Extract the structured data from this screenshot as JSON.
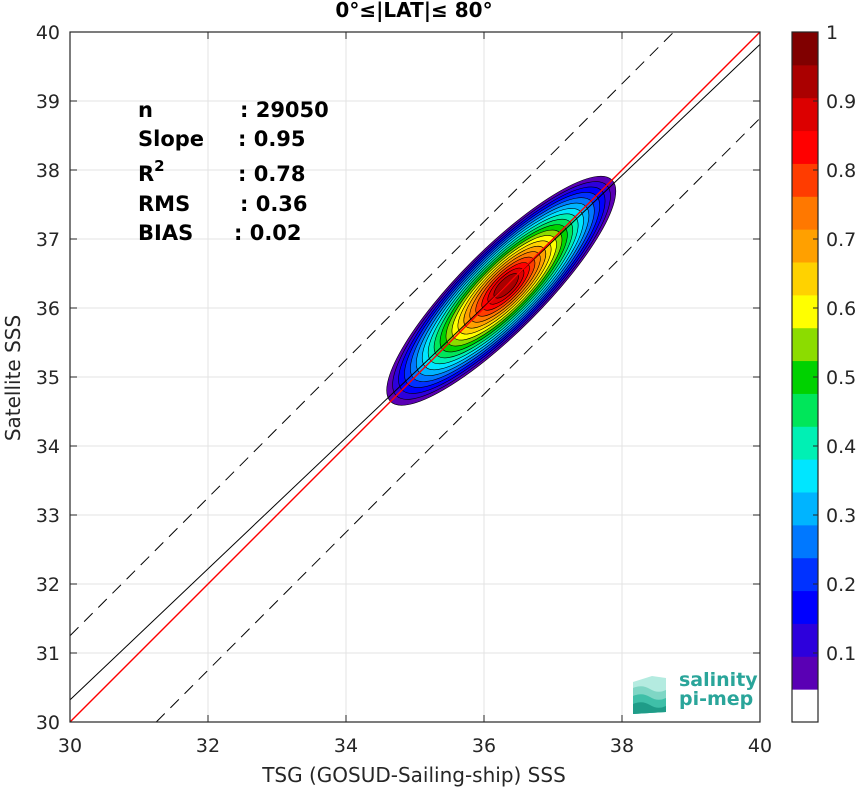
{
  "chart_data": {
    "type": "heatmap",
    "title": "0°≤|LAT|≤ 80°",
    "xlabel": "TSG (GOSUD-Sailing-ship) SSS",
    "ylabel": "Satellite SSS",
    "xlim": [
      30,
      40
    ],
    "ylim": [
      30,
      40
    ],
    "xticks": [
      "30",
      "32",
      "34",
      "36",
      "38",
      "40"
    ],
    "yticks": [
      "30",
      "31",
      "32",
      "33",
      "34",
      "35",
      "36",
      "37",
      "38",
      "39",
      "40"
    ],
    "grid": true,
    "stats": [
      {
        "label": "n",
        "value": ": 29050"
      },
      {
        "label": "Slope",
        "value": ": 0.95"
      },
      {
        "label": "R2",
        "value": ": 0.78"
      },
      {
        "label": "RMS",
        "value": ": 0.36"
      },
      {
        "label": "BIAS",
        "value": ": 0.02"
      }
    ],
    "lines": {
      "identity": {
        "slope": 1.0,
        "intercept": 0.0,
        "color": "#ff0000"
      },
      "regression": {
        "slope": 0.95,
        "intercept": 1.82,
        "color": "#000000"
      },
      "bounds_offset": 1.25
    },
    "density_center": {
      "x": 36.25,
      "y": 36.25
    },
    "colorbar": {
      "range": [
        0,
        1
      ],
      "ticks": [
        "0.1",
        "0.2",
        "0.3",
        "0.4",
        "0.5",
        "0.6",
        "0.7",
        "0.8",
        "0.9",
        "1"
      ],
      "colors": [
        "#ffffff",
        "#5a00b4",
        "#2d00dc",
        "#0000ff",
        "#0032ff",
        "#0078ff",
        "#00b4ff",
        "#00e6ff",
        "#00f0b4",
        "#00e65a",
        "#00d200",
        "#8cdc00",
        "#ffff00",
        "#ffd200",
        "#ffa000",
        "#ff7800",
        "#ff3c00",
        "#ff0000",
        "#dc0000",
        "#aa0000",
        "#800000"
      ]
    }
  },
  "logo": {
    "line1": "salinity",
    "line2": "pi-mep"
  }
}
